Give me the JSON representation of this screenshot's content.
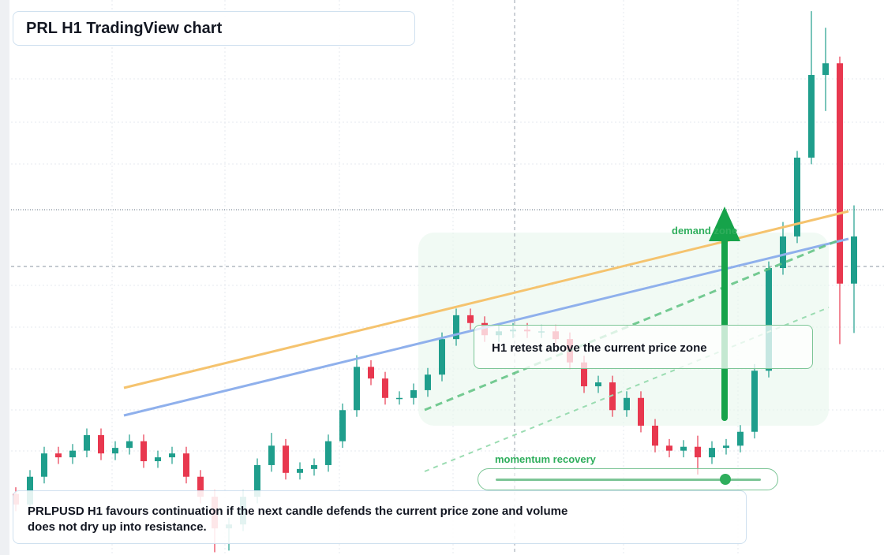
{
  "chart_data": {
    "type": "candlestick",
    "title": "PRL H1 TradingView chart",
    "annotations": [
      "demand zone",
      "H1 retest above the current price zone",
      "momentum recovery"
    ],
    "caption": "PRLPUSD H1 favours continuation if the next candle defends the current price zone and volume does not dry up into resistance.",
    "up_color": "#1f9e8c",
    "down_color": "#e8384f",
    "ylim": [
      0,
      100
    ],
    "open": [
      11.0,
      9.1,
      14.1,
      18.3,
      17.6,
      18.8,
      21.6,
      18.3,
      19.3,
      20.5,
      16.9,
      17.6,
      18.3,
      14.1,
      10.5,
      4.8,
      5.5,
      10.5,
      16.2,
      19.7,
      14.8,
      15.5,
      16.2,
      20.5,
      26.1,
      33.9,
      31.8,
      28.3,
      28.3,
      29.7,
      32.5,
      38.9,
      43.2,
      41.8,
      39.6,
      40.3,
      40.6,
      40.3,
      40.3,
      38.9,
      34.7,
      30.4,
      31.1,
      26.1,
      28.3,
      23.3,
      19.7,
      18.8,
      19.5,
      17.6,
      19.3,
      19.7,
      22.2,
      33.2,
      51.7,
      57.4,
      71.6,
      86.5,
      88.6,
      48.9
    ],
    "high": [
      12.2,
      15.3,
      19.5,
      19.5,
      20.0,
      22.8,
      22.8,
      20.5,
      21.7,
      21.7,
      18.8,
      19.5,
      19.5,
      15.3,
      11.7,
      6.7,
      11.7,
      17.4,
      22.0,
      20.9,
      16.7,
      17.4,
      21.7,
      27.3,
      36.0,
      35.1,
      33.0,
      29.5,
      30.9,
      33.7,
      40.1,
      44.4,
      44.4,
      43.0,
      41.5,
      41.8,
      41.8,
      41.5,
      41.5,
      40.1,
      35.9,
      32.3,
      32.3,
      29.5,
      29.5,
      24.5,
      20.9,
      20.7,
      21.5,
      20.5,
      20.9,
      23.4,
      34.4,
      52.9,
      60.0,
      72.8,
      98.0,
      95.0,
      89.8,
      63.0
    ],
    "low": [
      7.9,
      7.9,
      12.9,
      16.4,
      16.4,
      17.6,
      17.1,
      17.1,
      18.1,
      15.7,
      15.7,
      16.4,
      12.9,
      9.3,
      0.5,
      0.8,
      4.3,
      9.3,
      15.0,
      13.6,
      13.6,
      14.3,
      15.0,
      19.3,
      24.9,
      30.6,
      27.1,
      27.1,
      27.1,
      28.5,
      31.3,
      37.7,
      40.6,
      38.4,
      38.4,
      39.1,
      39.1,
      39.1,
      37.7,
      33.5,
      29.2,
      29.2,
      24.9,
      24.9,
      22.1,
      18.5,
      17.6,
      17.6,
      14.5,
      16.4,
      18.1,
      18.5,
      21.0,
      32.0,
      50.5,
      56.2,
      70.4,
      80.0,
      38.0,
      40.0
    ],
    "close": [
      9.1,
      14.1,
      18.3,
      17.6,
      18.8,
      21.6,
      18.3,
      19.3,
      20.5,
      16.9,
      17.6,
      18.3,
      14.1,
      10.5,
      4.8,
      5.5,
      10.5,
      16.2,
      19.7,
      14.8,
      15.5,
      16.2,
      20.5,
      26.1,
      33.9,
      31.8,
      28.3,
      28.3,
      29.7,
      32.5,
      38.9,
      43.2,
      41.8,
      39.6,
      40.3,
      40.6,
      40.3,
      40.3,
      38.9,
      34.7,
      30.4,
      31.1,
      26.1,
      28.3,
      23.3,
      19.7,
      18.8,
      19.5,
      17.6,
      19.3,
      19.7,
      22.2,
      33.2,
      51.7,
      57.4,
      71.6,
      86.5,
      88.6,
      48.9,
      57.4
    ]
  }
}
